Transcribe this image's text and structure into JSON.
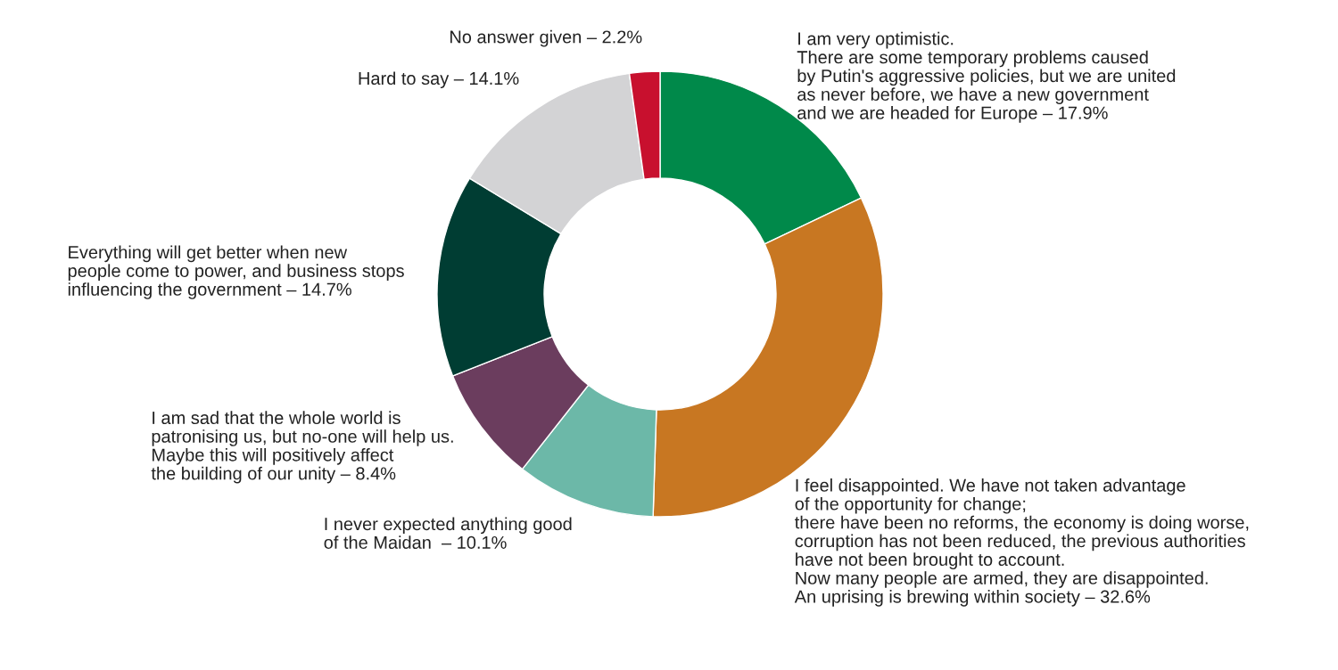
{
  "chart_data": {
    "type": "donut",
    "categories": [
      "I am very optimistic.\nThere are some temporary problems caused\nby Putin's aggressive policies, but we are united\nas never before, we have a new government\nand we are headed for Europe –",
      "I feel disappointed. We have not taken advantage\nof the opportunity for change;\nthere have been no reforms, the economy is doing worse,\ncorruption has not been reduced, the previous authorities\nhave not been brought to account.\nNow many people are armed, they are disappointed.\nAn uprising is brewing within society –",
      "I never expected anything good\nof the Maidan  –",
      "I am sad that the whole world is\npatronising us, but no-one will help us.\nMaybe this will positively affect\nthe building of our unity –",
      "Everything will get better when new\npeople come to power, and business stops\ninfluencing the government –",
      "Hard to say –",
      "No answer given –"
    ],
    "values": [
      17.9,
      32.6,
      10.1,
      8.4,
      14.7,
      14.1,
      2.2
    ],
    "value_labels": [
      "17.9%",
      "32.6%",
      "10.1%",
      "8.4%",
      "14.7%",
      "14.1%",
      "2.2%"
    ],
    "colors": [
      "#00894a",
      "#c87722",
      "#6cb8a8",
      "#6b3d5e",
      "#003d33",
      "#d3d3d5",
      "#c8102e"
    ]
  }
}
